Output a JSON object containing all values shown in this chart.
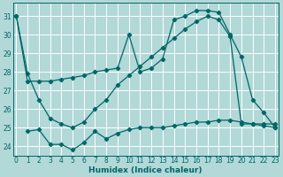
{
  "xlabel": "Humidex (Indice chaleur)",
  "background_color": "#b2d8d8",
  "grid_color": "#ffffff",
  "line_color": "#006666",
  "xlim": [
    -0.3,
    23.3
  ],
  "ylim": [
    23.5,
    31.7
  ],
  "yticks": [
    24,
    25,
    26,
    27,
    28,
    29,
    30,
    31
  ],
  "xticks": [
    0,
    1,
    2,
    3,
    4,
    5,
    6,
    7,
    8,
    9,
    10,
    11,
    12,
    13,
    14,
    15,
    16,
    17,
    18,
    19,
    20,
    21,
    22,
    23
  ],
  "line1_x": [
    0,
    1,
    2,
    3,
    4,
    5,
    6,
    7,
    8,
    9,
    10,
    11,
    12,
    13,
    14,
    15,
    16,
    17,
    18,
    19,
    20,
    21,
    22,
    23
  ],
  "line1_y": [
    31,
    27.5,
    27.5,
    27.5,
    27.6,
    27.7,
    27.8,
    28.0,
    28.1,
    28.2,
    30.0,
    28.0,
    28.2,
    28.7,
    30.8,
    31.0,
    31.3,
    31.3,
    31.2,
    30.0,
    28.8,
    26.5,
    25.8,
    25.0
  ],
  "line2_x": [
    0,
    1,
    2,
    3,
    4,
    5,
    6,
    7,
    8,
    9,
    10,
    11,
    12,
    13,
    14,
    15,
    16,
    17,
    18,
    19,
    20,
    21,
    22,
    23
  ],
  "line2_y": [
    31,
    27.9,
    26.5,
    25.5,
    25.2,
    25.0,
    25.3,
    26.0,
    26.5,
    27.3,
    27.8,
    28.3,
    28.8,
    29.3,
    29.8,
    30.3,
    30.7,
    31.0,
    30.8,
    29.9,
    25.2,
    25.2,
    25.2,
    25.2
  ],
  "line3_x": [
    1,
    2,
    3,
    4,
    5,
    6,
    7,
    8,
    9,
    10,
    11,
    12,
    13,
    14,
    15,
    16,
    17,
    18,
    19,
    20,
    21,
    22,
    23
  ],
  "line3_y": [
    24.8,
    24.9,
    24.1,
    24.1,
    23.8,
    24.2,
    24.8,
    24.4,
    24.7,
    24.9,
    25.0,
    25.0,
    25.0,
    25.1,
    25.2,
    25.3,
    25.3,
    25.4,
    25.4,
    25.3,
    25.2,
    25.1,
    25.0
  ]
}
